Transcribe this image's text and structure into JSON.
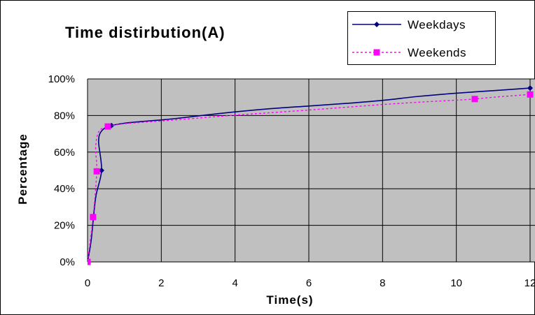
{
  "chart_data": {
    "type": "line",
    "title": "Time distirbution(A)",
    "xlabel": "Time(s)",
    "ylabel": "Percentage",
    "xlim": [
      0,
      12
    ],
    "ylim": [
      0,
      100
    ],
    "x_ticks": [
      "0",
      "2",
      "4",
      "6",
      "8",
      "10",
      "12"
    ],
    "y_ticks": [
      "0%",
      "20%",
      "40%",
      "60%",
      "80%",
      "100%"
    ],
    "grid": true,
    "legend_position": "top-right",
    "series": [
      {
        "name": "Weekdays",
        "color": "#000080",
        "line_style": "solid",
        "marker": "diamond",
        "points": [
          [
            0.0,
            0
          ],
          [
            0.38,
            50
          ],
          [
            0.65,
            74.5
          ],
          [
            12.0,
            95
          ]
        ],
        "curve": [
          [
            0.0,
            0
          ],
          [
            0.1,
            12
          ],
          [
            0.22,
            35
          ],
          [
            0.38,
            50
          ],
          [
            0.3,
            66
          ],
          [
            0.4,
            72
          ],
          [
            0.65,
            74.5
          ],
          [
            1.0,
            75.8
          ],
          [
            1.5,
            76.8
          ],
          [
            2.0,
            77.6
          ],
          [
            2.5,
            78.6
          ],
          [
            3.0,
            79.8
          ],
          [
            4.0,
            82
          ],
          [
            5.0,
            83.8
          ],
          [
            6.0,
            85.2
          ],
          [
            7.0,
            86.6
          ],
          [
            8.0,
            88.3
          ],
          [
            9.0,
            90.5
          ],
          [
            10.0,
            92.2
          ],
          [
            11.0,
            93.6
          ],
          [
            12.0,
            95
          ]
        ]
      },
      {
        "name": "Weekends",
        "color": "#ff00ff",
        "line_style": "dotted",
        "marker": "square",
        "points": [
          [
            0.0,
            0
          ],
          [
            0.15,
            24.5
          ],
          [
            0.25,
            49.5
          ],
          [
            0.55,
            74
          ],
          [
            10.5,
            89
          ],
          [
            12.0,
            91.5
          ]
        ],
        "curve": [
          [
            0.0,
            0
          ],
          [
            0.15,
            24.5
          ],
          [
            0.25,
            49.5
          ],
          [
            0.22,
            62
          ],
          [
            0.3,
            71
          ],
          [
            0.55,
            74
          ],
          [
            1.0,
            75.5
          ],
          [
            1.5,
            76.3
          ],
          [
            2.0,
            77
          ],
          [
            3.0,
            78.6
          ],
          [
            4.0,
            80.2
          ],
          [
            5.0,
            81.6
          ],
          [
            6.0,
            83
          ],
          [
            7.0,
            84.5
          ],
          [
            8.0,
            86
          ],
          [
            9.0,
            87.3
          ],
          [
            10.0,
            88.4
          ],
          [
            10.5,
            89
          ],
          [
            11.0,
            90
          ],
          [
            12.0,
            91.5
          ]
        ]
      }
    ]
  }
}
